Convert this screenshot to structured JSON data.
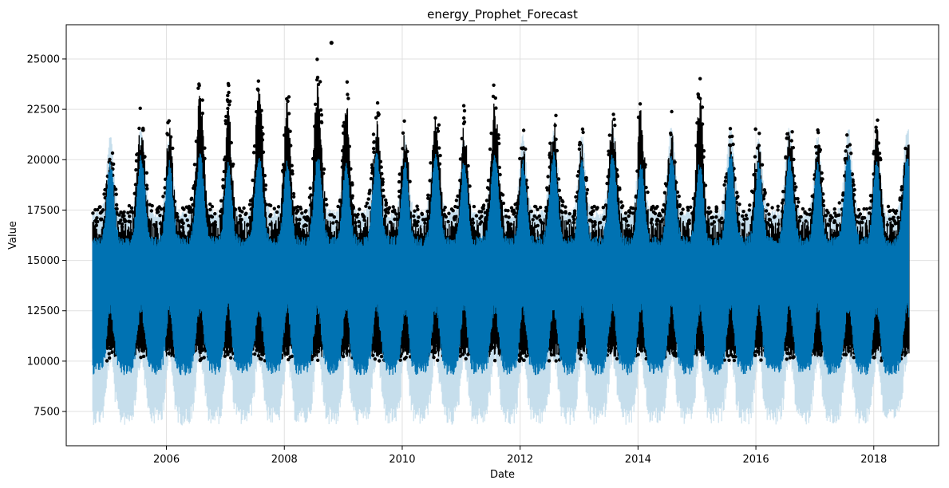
{
  "chart_data": {
    "type": "line",
    "title": "energy_Prophet_Forecast",
    "xlabel": "Date",
    "ylabel": "Value",
    "xlim": [
      2004.3,
      2019.1
    ],
    "ylim": [
      5800,
      26700
    ],
    "grid": true,
    "x_ticks": [
      2006,
      2008,
      2010,
      2012,
      2014,
      2016,
      2018
    ],
    "y_ticks": [
      7500,
      10000,
      12500,
      15000,
      17500,
      20000,
      22500,
      25000
    ],
    "x_range_data": [
      2004.75,
      2018.6
    ],
    "series": [
      {
        "role": "observed",
        "marker": "dot",
        "color": "#000000",
        "yearly_peaks": [
          {
            "year": 2005,
            "summer_max": 23000,
            "winter_max": 20800
          },
          {
            "year": 2006,
            "summer_max": 24700,
            "winter_max": 22700
          },
          {
            "year": 2007,
            "summer_max": 25200,
            "winter_max": 24200
          },
          {
            "year": 2008,
            "summer_max": 25800,
            "winter_max": 24300
          },
          {
            "year": 2009,
            "summer_max": 23200,
            "winter_max": 24700
          },
          {
            "year": 2010,
            "summer_max": 23700,
            "winter_max": 22800
          },
          {
            "year": 2011,
            "summer_max": 24500,
            "winter_max": 23000
          },
          {
            "year": 2012,
            "summer_max": 23300,
            "winter_max": 21500
          },
          {
            "year": 2013,
            "summer_max": 23100,
            "winter_max": 22000
          },
          {
            "year": 2014,
            "summer_max": 22600,
            "winter_max": 24400
          },
          {
            "year": 2015,
            "summer_max": 22000,
            "winter_max": 24700
          },
          {
            "year": 2016,
            "summer_max": 22700,
            "winter_max": 21800
          },
          {
            "year": 2017,
            "summer_max": 21500,
            "winter_max": 21700
          },
          {
            "year": 2018,
            "summer_max": 22400,
            "winter_max": 22800
          }
        ],
        "typical_min": 10200
      },
      {
        "role": "forecast",
        "color": "#0072B2",
        "description_range": [
          9000,
          21000
        ]
      },
      {
        "role": "uncertainty_interval",
        "color": "#0072B2",
        "opacity": 0.2,
        "range": [
          6500,
          22000
        ]
      }
    ]
  },
  "colors": {
    "observed": "#000000",
    "forecast": "#0072B2",
    "interval": "#c6deec",
    "grid": "#e0e0e0"
  }
}
